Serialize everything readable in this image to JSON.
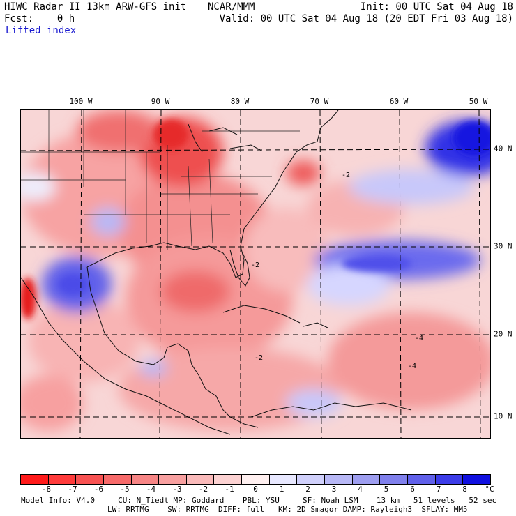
{
  "header": {
    "title_left": "HIWC Radar II 13km ARW-GFS init",
    "org": "NCAR/MMM",
    "init": "Init: 00 UTC Sat 04 Aug 18",
    "fcst": "Fcst:    0 h",
    "valid": "Valid: 00 UTC Sat 04 Aug 18 (20 EDT Fri 03 Aug 18)",
    "field": "Lifted index"
  },
  "map": {
    "lon_labels": [
      "100 W",
      "90 W",
      "80 W",
      "70 W",
      "60 W",
      "50 W"
    ],
    "lat_labels": [
      "40 N",
      "30 N",
      "20 N",
      "10 N"
    ],
    "contour_labels": [
      "-2",
      "-2",
      "-2",
      "-4",
      "-4"
    ]
  },
  "colorbar": {
    "labels": [
      "-8",
      "-7",
      "-6",
      "-5",
      "-4",
      "-3",
      "-2",
      "-1",
      "0",
      "1",
      "2",
      "3",
      "4",
      "5",
      "6",
      "7",
      "8"
    ],
    "unit": "°C",
    "colors": [
      "#ff1a1a",
      "#ff3b3b",
      "#f85252",
      "#f76a6a",
      "#f78585",
      "#f8a0a0",
      "#fababa",
      "#fcd2d2",
      "#fff0f0",
      "#e8e8ff",
      "#d0d0fb",
      "#b8b8f6",
      "#9e9ef0",
      "#8080ec",
      "#6060ea",
      "#3c3ce8",
      "#1010e0"
    ]
  },
  "footer": {
    "line1": "Model Info: V4.0     CU: N_Tiedt MP: Goddard    PBL: YSU     SF: Noah LSM    13 km   51 levels   52 sec",
    "line2": "LW: RRTMG    SW: RRTMG  DIFF: full   KM: 2D Smagor DAMP: Rayleigh3  SFLAY: MM5"
  }
}
